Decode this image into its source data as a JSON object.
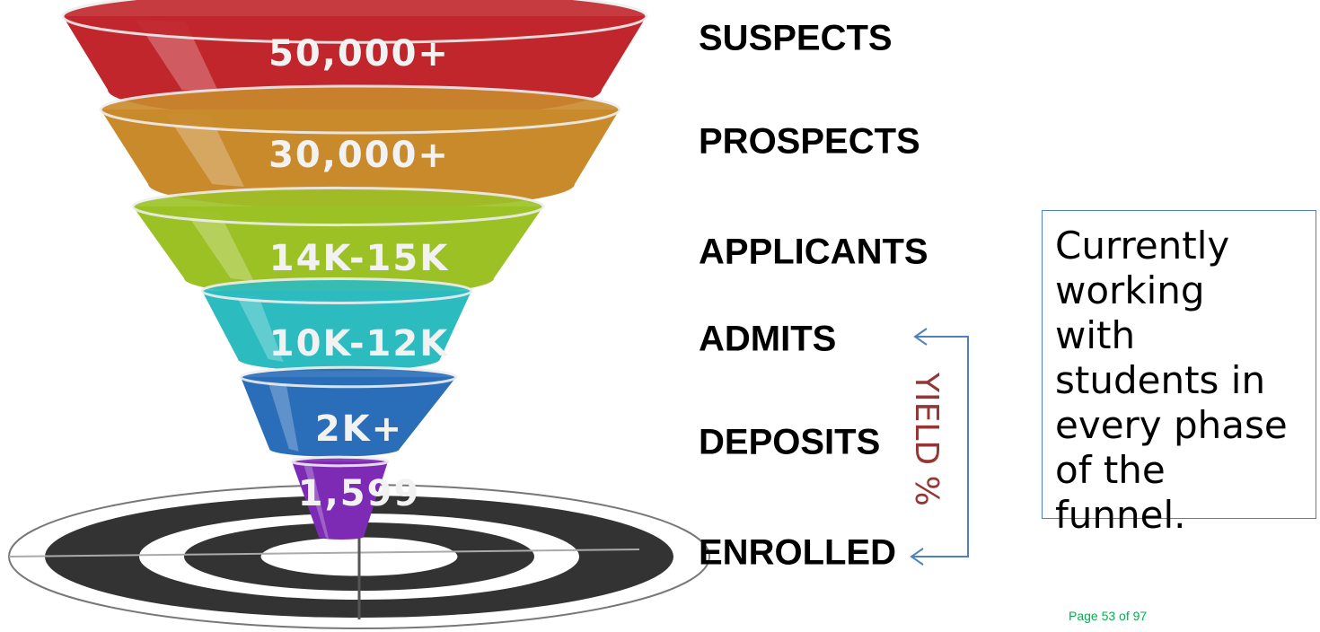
{
  "stages": [
    {
      "value": "50,000+",
      "name": "SUSPECTS",
      "color": "#c0262c"
    },
    {
      "value": "30,000+",
      "name": "PROSPECTS",
      "color": "#c98a2c"
    },
    {
      "value": "14K-15K",
      "name": "APPLICANTS",
      "color": "#9cc125"
    },
    {
      "value": "10K-12K",
      "name": "ADMITS",
      "color": "#2cbcc0"
    },
    {
      "value": "2K+",
      "name": "DEPOSITS",
      "color": "#2a6db8"
    },
    {
      "value": "1,599",
      "name": "ENROLLED",
      "color": "#7d2bb5"
    }
  ],
  "bracket_label": "YIELD %",
  "note": {
    "lines": [
      "Currently",
      "working",
      "with",
      "students in",
      "every phase",
      "of the",
      "funnel."
    ]
  },
  "footer": "Page 53 of 97"
}
